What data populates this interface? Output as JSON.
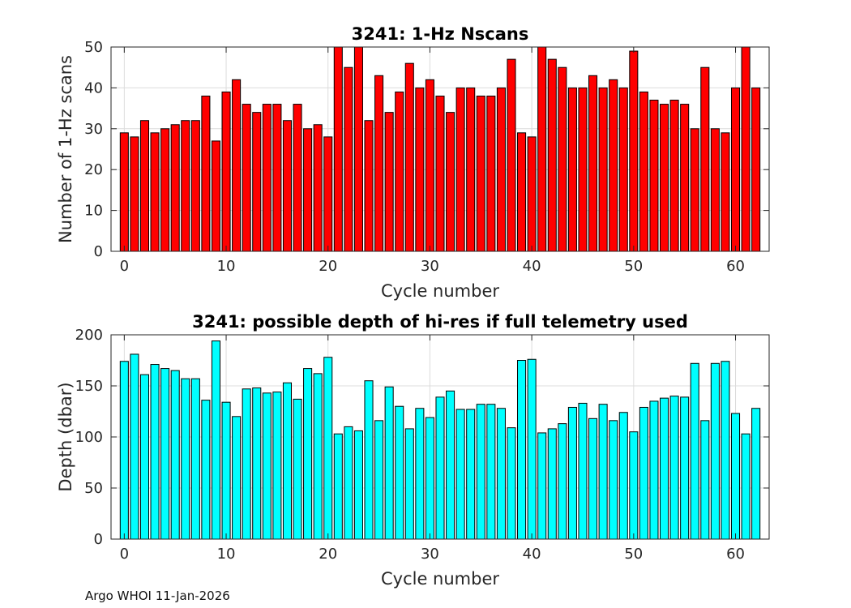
{
  "footer": "Argo WHOI 11-Jan-2026",
  "chart_data": [
    {
      "type": "bar",
      "title": "3241: 1-Hz Nscans",
      "xlabel": "Cycle number",
      "ylabel": "Number of 1-Hz scans",
      "xlim": [
        -1.3,
        63.3
      ],
      "ylim": [
        0,
        50
      ],
      "xticks": [
        0,
        10,
        20,
        30,
        40,
        50,
        60
      ],
      "yticks": [
        0,
        10,
        20,
        30,
        40,
        50
      ],
      "grid": true,
      "bar_color": "#ff0000",
      "edge_color": "#000000",
      "x": [
        0,
        1,
        2,
        3,
        4,
        5,
        6,
        7,
        8,
        9,
        10,
        11,
        12,
        13,
        14,
        15,
        16,
        17,
        18,
        19,
        20,
        21,
        22,
        23,
        24,
        25,
        26,
        27,
        28,
        29,
        30,
        31,
        32,
        33,
        34,
        35,
        36,
        37,
        38,
        39,
        40,
        41,
        42,
        43,
        44,
        45,
        46,
        47,
        48,
        49,
        50,
        51,
        52,
        53,
        54,
        55,
        56,
        57,
        58,
        59,
        60,
        61,
        62
      ],
      "values": [
        29,
        28,
        32,
        29,
        30,
        31,
        32,
        32,
        38,
        27,
        39,
        42,
        36,
        34,
        36,
        36,
        32,
        36,
        30,
        31,
        28,
        50,
        45,
        50,
        32,
        43,
        34,
        39,
        46,
        40,
        42,
        38,
        34,
        40,
        40,
        38,
        38,
        40,
        47,
        29,
        28,
        50,
        47,
        45,
        40,
        40,
        43,
        40,
        42,
        40,
        49,
        39,
        37,
        36,
        37,
        36,
        30,
        45,
        30,
        29,
        40,
        50,
        40
      ]
    },
    {
      "type": "bar",
      "title": "3241: possible depth of hi-res if full telemetry used",
      "xlabel": "Cycle number",
      "ylabel": "Depth (dbar)",
      "xlim": [
        -1.3,
        63.3
      ],
      "ylim": [
        0,
        200
      ],
      "xticks": [
        0,
        10,
        20,
        30,
        40,
        50,
        60
      ],
      "yticks": [
        0,
        50,
        100,
        150,
        200
      ],
      "grid": true,
      "bar_color": "#00ffff",
      "edge_color": "#000000",
      "x": [
        0,
        1,
        2,
        3,
        4,
        5,
        6,
        7,
        8,
        9,
        10,
        11,
        12,
        13,
        14,
        15,
        16,
        17,
        18,
        19,
        20,
        21,
        22,
        23,
        24,
        25,
        26,
        27,
        28,
        29,
        30,
        31,
        32,
        33,
        34,
        35,
        36,
        37,
        38,
        39,
        40,
        41,
        42,
        43,
        44,
        45,
        46,
        47,
        48,
        49,
        50,
        51,
        52,
        53,
        54,
        55,
        56,
        57,
        58,
        59,
        60,
        61,
        62
      ],
      "values": [
        174,
        181,
        161,
        171,
        167,
        165,
        157,
        157,
        136,
        194,
        134,
        120,
        147,
        148,
        143,
        144,
        153,
        137,
        167,
        162,
        178,
        103,
        110,
        106,
        155,
        116,
        149,
        130,
        108,
        128,
        119,
        139,
        145,
        127,
        127,
        132,
        132,
        128,
        109,
        175,
        176,
        104,
        108,
        113,
        129,
        133,
        118,
        132,
        116,
        124,
        105,
        129,
        135,
        138,
        140,
        139,
        172,
        116,
        172,
        174,
        123,
        103,
        128
      ]
    }
  ]
}
